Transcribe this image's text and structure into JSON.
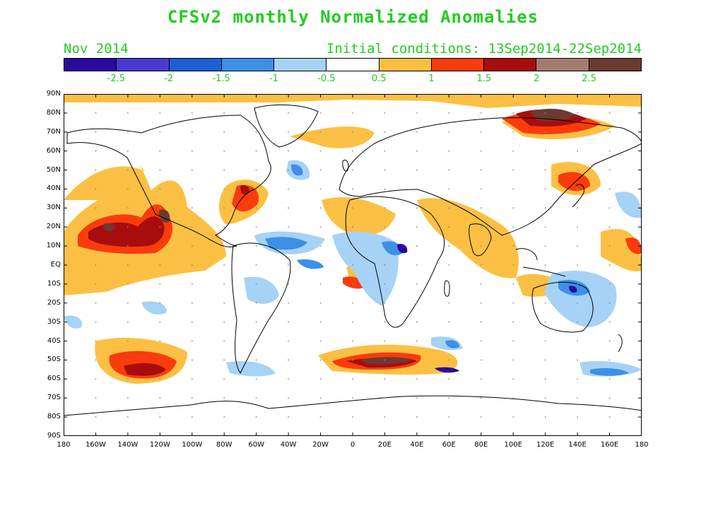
{
  "title": "CFSv2 monthly Normalized Anomalies",
  "month_label": "Nov 2014",
  "init_label": "Initial conditions: 13Sep2014-22Sep2014",
  "colorbar": {
    "colors": [
      "#2a0a9e",
      "#4b3ad1",
      "#1f5fd6",
      "#3d8fe8",
      "#a6d2f5",
      "#ffffff",
      "#fbc043",
      "#fa3b0c",
      "#a80d0d",
      "#a37a70",
      "#6b3a30"
    ],
    "labels": [
      "-2.5",
      "-2",
      "-1.5",
      "-1",
      "-0.5",
      "0.5",
      "1",
      "1.5",
      "2",
      "2.5"
    ]
  },
  "lat_labels": [
    "90N",
    "80N",
    "70N",
    "60N",
    "50N",
    "40N",
    "30N",
    "20N",
    "10N",
    "EQ",
    "10S",
    "20S",
    "30S",
    "40S",
    "50S",
    "60S",
    "70S",
    "80S",
    "90S"
  ],
  "lon_labels": [
    "180",
    "160W",
    "140W",
    "120W",
    "100W",
    "80W",
    "60W",
    "40W",
    "20W",
    "0",
    "20E",
    "40E",
    "60E",
    "80E",
    "100E",
    "120E",
    "140E",
    "160E",
    "180"
  ]
}
